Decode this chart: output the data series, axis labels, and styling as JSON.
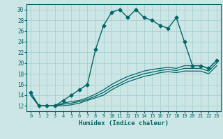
{
  "xlabel": "Humidex (Indice chaleur)",
  "xlim": [
    -0.5,
    23.5
  ],
  "ylim": [
    11,
    31
  ],
  "yticks": [
    12,
    14,
    16,
    18,
    20,
    22,
    24,
    26,
    28,
    30
  ],
  "xticks": [
    0,
    1,
    2,
    3,
    4,
    5,
    6,
    7,
    8,
    9,
    10,
    11,
    12,
    13,
    14,
    15,
    16,
    17,
    18,
    19,
    20,
    21,
    22,
    23
  ],
  "bg_color": "#cce5e5",
  "grid_color": "#9fcece",
  "line_color": "#006666",
  "lines": [
    {
      "x": [
        0,
        1,
        2,
        3,
        4,
        5,
        6,
        7,
        8,
        9,
        10,
        11,
        12,
        13,
        14,
        15,
        16,
        17,
        18,
        19,
        20,
        21,
        22,
        23
      ],
      "y": [
        14.5,
        12,
        12,
        12,
        13,
        14,
        15,
        16,
        22.5,
        27,
        29.5,
        30,
        28.5,
        30,
        28.5,
        28,
        27,
        26.5,
        28.5,
        24,
        19.5,
        19.5,
        19,
        20.5
      ],
      "marker": "D",
      "markersize": 2.5,
      "linewidth": 1.0
    },
    {
      "x": [
        0,
        1,
        2,
        3,
        4,
        5,
        6,
        7,
        8,
        9,
        10,
        11,
        12,
        13,
        14,
        15,
        16,
        17,
        18,
        19,
        20,
        21,
        22,
        23
      ],
      "y": [
        14,
        12,
        12,
        12,
        12.5,
        12.8,
        13,
        13.5,
        14.2,
        15,
        16,
        16.8,
        17.5,
        18,
        18.5,
        18.8,
        19,
        19.2,
        19,
        19.5,
        19.5,
        19.5,
        19,
        20.5
      ],
      "marker": null,
      "linewidth": 0.9
    },
    {
      "x": [
        0,
        1,
        2,
        3,
        4,
        5,
        6,
        7,
        8,
        9,
        10,
        11,
        12,
        13,
        14,
        15,
        16,
        17,
        18,
        19,
        20,
        21,
        22,
        23
      ],
      "y": [
        14,
        12,
        12,
        12,
        12.3,
        12.5,
        12.8,
        13.2,
        13.8,
        14.5,
        15.5,
        16.2,
        17,
        17.5,
        18,
        18.3,
        18.6,
        18.8,
        18.6,
        19,
        19,
        19,
        18.5,
        20
      ],
      "marker": null,
      "linewidth": 0.9
    },
    {
      "x": [
        0,
        1,
        2,
        3,
        4,
        5,
        6,
        7,
        8,
        9,
        10,
        11,
        12,
        13,
        14,
        15,
        16,
        17,
        18,
        19,
        20,
        21,
        22,
        23
      ],
      "y": [
        14,
        12,
        12,
        12,
        12,
        12.2,
        12.5,
        13,
        13.5,
        14,
        15,
        15.8,
        16.5,
        17,
        17.5,
        17.8,
        18.2,
        18.4,
        18.2,
        18.5,
        18.5,
        18.5,
        18,
        19.5
      ],
      "marker": null,
      "linewidth": 0.9
    }
  ]
}
